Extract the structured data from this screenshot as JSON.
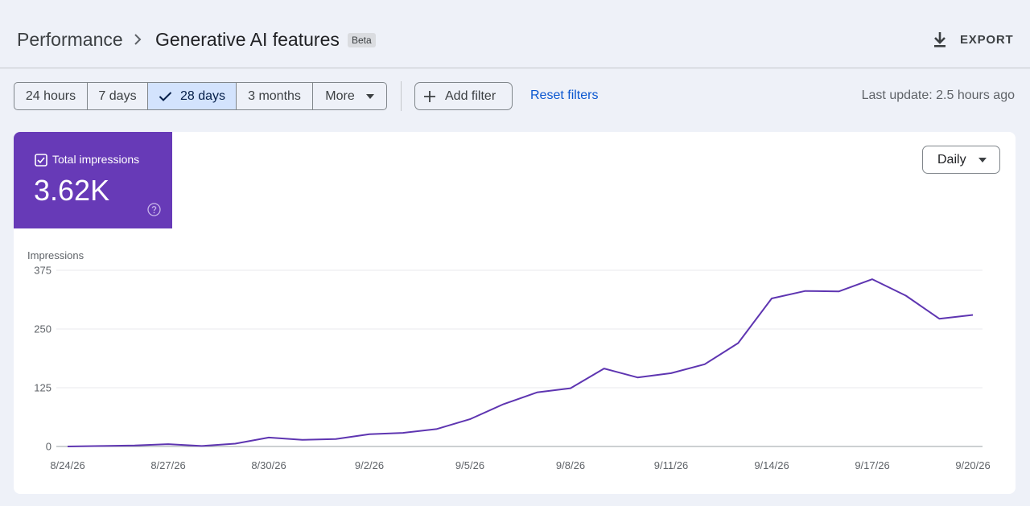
{
  "breadcrumb": {
    "root": "Performance",
    "current": "Generative AI features",
    "badge": "Beta"
  },
  "header": {
    "export_label": "EXPORT",
    "export_icon": "download-icon"
  },
  "date_range": {
    "options": [
      "24 hours",
      "7 days",
      "28 days",
      "3 months",
      "More"
    ],
    "selected": "28 days"
  },
  "filters": {
    "add_filter_label": "Add filter",
    "reset_label": "Reset filters"
  },
  "last_update": "Last update: 2.5 hours ago",
  "metric": {
    "label": "Total impressions",
    "value": "3.62K",
    "checked": true,
    "color": "#673ab7"
  },
  "granularity": {
    "selected": "Daily"
  },
  "chart_data": {
    "type": "line",
    "ylabel": "Impressions",
    "xlabel": "",
    "ylim": [
      0,
      375
    ],
    "yticks": [
      0,
      125,
      250,
      375
    ],
    "xtick_labels": [
      "8/24/26",
      "8/27/26",
      "8/30/26",
      "9/2/26",
      "9/5/26",
      "9/8/26",
      "9/11/26",
      "9/14/26",
      "9/17/26",
      "9/20/26"
    ],
    "grid": true,
    "series": [
      {
        "color": "#5e35b1",
        "x": [
          "8/24/26",
          "8/25/26",
          "8/26/26",
          "8/27/26",
          "8/28/26",
          "8/29/26",
          "8/30/26",
          "8/31/26",
          "9/1/26",
          "9/2/26",
          "9/3/26",
          "9/4/26",
          "9/5/26",
          "9/6/26",
          "9/7/26",
          "9/8/26",
          "9/9/26",
          "9/10/26",
          "9/11/26",
          "9/12/26",
          "9/13/26",
          "9/14/26",
          "9/15/26",
          "9/16/26",
          "9/17/26",
          "9/18/26",
          "9/19/26",
          "9/20/26"
        ],
        "values": [
          0,
          1,
          2,
          5,
          1,
          6,
          19,
          14,
          16,
          26,
          29,
          37,
          58,
          90,
          115,
          124,
          166,
          147,
          156,
          175,
          220,
          315,
          331,
          330,
          356,
          321,
          272,
          280
        ]
      }
    ]
  }
}
